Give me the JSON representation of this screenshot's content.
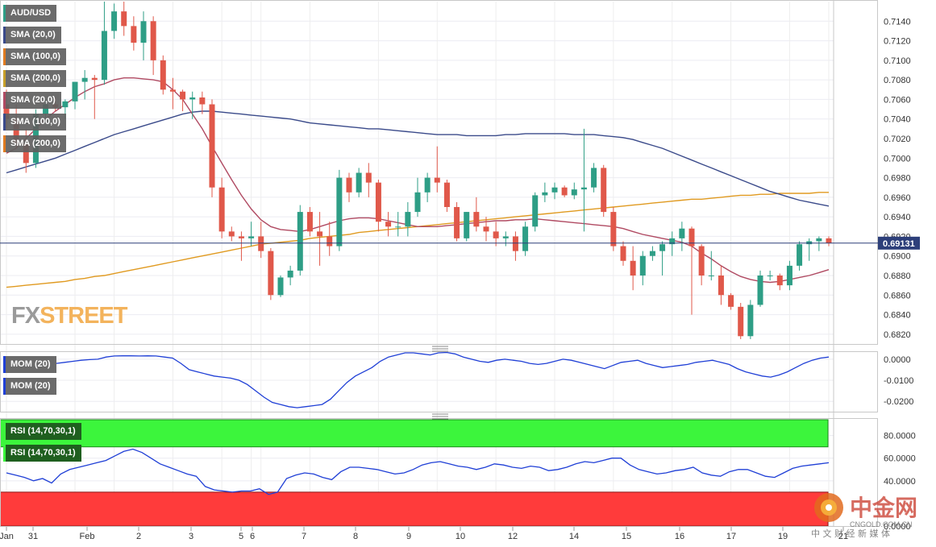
{
  "instrument": "AUD/USD",
  "price_panel": {
    "legend": [
      "SMA (20,0)",
      "SMA (100,0)",
      "SMA (200,0)",
      "SMA (20,0)",
      "SMA (100,0)",
      "SMA (200,0)"
    ],
    "legend_colors": [
      "#3a4a8a",
      "#e07b20",
      "#c7a02a",
      "#b04a62",
      "#3a4a8a",
      "#e07b20"
    ],
    "yticks": [
      "0.7140",
      "0.7120",
      "0.7100",
      "0.7080",
      "0.7060",
      "0.7040",
      "0.7020",
      "0.7000",
      "0.6980",
      "0.6960",
      "0.6940",
      "0.6920",
      "0.6900",
      "0.6880",
      "0.6860",
      "0.6840",
      "0.6820"
    ],
    "current_price": "0.69131",
    "watermark_fx": "FX",
    "watermark_street": "STREET"
  },
  "mom_panel": {
    "legend": [
      "MOM (20)",
      "MOM (20)"
    ],
    "yticks": [
      "0.0000",
      "-0.0100",
      "-0.0200"
    ]
  },
  "rsi_panel": {
    "legend": [
      "RSI (14,70,30,1)",
      "RSI (14,70,30,1)"
    ],
    "yticks": [
      "80.0000",
      "60.0000",
      "40.0000",
      "0.0000"
    ]
  },
  "x_labels": [
    "Jan",
    "31",
    "Feb",
    "2",
    "3",
    "5",
    "6",
    "7",
    "8",
    "9",
    "10",
    "12",
    "14",
    "15",
    "16",
    "17",
    "19",
    "21"
  ],
  "logo": {
    "cn_title": "中金网",
    "domain": "CNGOLD.COM.CN",
    "cn_sub": "中 文 财 经 新 媒 体"
  },
  "colors": {
    "up": "#2e9e86",
    "down": "#e0584a",
    "sma20": "#b04a62",
    "sma100": "#3a4a8a",
    "sma200": "#e09a20",
    "mom": "#1f3fd6",
    "rsi": "#1f3fd6",
    "overbought": "#3cf53c",
    "oversold": "#ff3b3b",
    "price_line": "#2d3f7a"
  },
  "chart_data": {
    "type": "candlestick",
    "title": "AUD/USD",
    "timeframe_labels": [
      "Jan",
      "31",
      "Feb",
      "2",
      "3",
      "5",
      "6",
      "7",
      "8",
      "9",
      "10",
      "12",
      "14",
      "15",
      "16",
      "17",
      "19",
      "21"
    ],
    "ylim": [
      0.681,
      0.716
    ],
    "candles": [
      [
        0.7055,
        0.707,
        0.703,
        0.704
      ],
      [
        0.704,
        0.7055,
        0.701,
        0.7015
      ],
      [
        0.7015,
        0.703,
        0.6985,
        0.6995
      ],
      [
        0.6995,
        0.705,
        0.699,
        0.7045
      ],
      [
        0.7045,
        0.706,
        0.704,
        0.7055
      ],
      [
        0.7055,
        0.7062,
        0.7048,
        0.7052
      ],
      [
        0.7052,
        0.706,
        0.704,
        0.7058
      ],
      [
        0.7058,
        0.7075,
        0.705,
        0.7078
      ],
      [
        0.7078,
        0.709,
        0.706,
        0.7082
      ],
      [
        0.7082,
        0.7085,
        0.704,
        0.708
      ],
      [
        0.708,
        0.716,
        0.7075,
        0.713
      ],
      [
        0.713,
        0.7158,
        0.7122,
        0.715
      ],
      [
        0.715,
        0.716,
        0.7125,
        0.7135
      ],
      [
        0.7135,
        0.7145,
        0.711,
        0.7118
      ],
      [
        0.7118,
        0.715,
        0.71,
        0.714
      ],
      [
        0.714,
        0.7145,
        0.7085,
        0.71
      ],
      [
        0.71,
        0.7105,
        0.7065,
        0.707
      ],
      [
        0.707,
        0.7082,
        0.705,
        0.7068
      ],
      [
        0.7068,
        0.707,
        0.7048,
        0.706
      ],
      [
        0.706,
        0.7068,
        0.704,
        0.7062
      ],
      [
        0.7062,
        0.7068,
        0.7045,
        0.7055
      ],
      [
        0.7055,
        0.706,
        0.696,
        0.697
      ],
      [
        0.697,
        0.698,
        0.6918,
        0.6925
      ],
      [
        0.6925,
        0.693,
        0.6915,
        0.692
      ],
      [
        0.692,
        0.6925,
        0.6895,
        0.6918
      ],
      [
        0.6918,
        0.6935,
        0.691,
        0.692
      ],
      [
        0.692,
        0.6935,
        0.6898,
        0.6905
      ],
      [
        0.6905,
        0.6908,
        0.6855,
        0.686
      ],
      [
        0.686,
        0.688,
        0.6858,
        0.6878
      ],
      [
        0.6878,
        0.689,
        0.687,
        0.6885
      ],
      [
        0.6885,
        0.6952,
        0.688,
        0.6945
      ],
      [
        0.6945,
        0.695,
        0.692,
        0.6925
      ],
      [
        0.6925,
        0.6945,
        0.689,
        0.692
      ],
      [
        0.692,
        0.6935,
        0.69,
        0.691
      ],
      [
        0.691,
        0.6988,
        0.6905,
        0.698
      ],
      [
        0.698,
        0.6985,
        0.6955,
        0.6965
      ],
      [
        0.6965,
        0.699,
        0.696,
        0.6985
      ],
      [
        0.6985,
        0.6995,
        0.696,
        0.6975
      ],
      [
        0.6975,
        0.6978,
        0.6925,
        0.6935
      ],
      [
        0.6935,
        0.6945,
        0.692,
        0.693
      ],
      [
        0.693,
        0.6945,
        0.692,
        0.693
      ],
      [
        0.693,
        0.6955,
        0.692,
        0.6945
      ],
      [
        0.6945,
        0.698,
        0.694,
        0.6965
      ],
      [
        0.6965,
        0.6985,
        0.6955,
        0.698
      ],
      [
        0.698,
        0.7012,
        0.6965,
        0.6975
      ],
      [
        0.6975,
        0.6978,
        0.6945,
        0.695
      ],
      [
        0.695,
        0.6955,
        0.6915,
        0.6918
      ],
      [
        0.6918,
        0.6945,
        0.6915,
        0.6945
      ],
      [
        0.6945,
        0.696,
        0.6925,
        0.693
      ],
      [
        0.693,
        0.694,
        0.6915,
        0.6925
      ],
      [
        0.6925,
        0.6935,
        0.691,
        0.6918
      ],
      [
        0.6918,
        0.6925,
        0.691,
        0.692
      ],
      [
        0.692,
        0.6925,
        0.6895,
        0.6905
      ],
      [
        0.6905,
        0.6935,
        0.69,
        0.693
      ],
      [
        0.693,
        0.6965,
        0.6925,
        0.6962
      ],
      [
        0.6962,
        0.6975,
        0.6955,
        0.6965
      ],
      [
        0.6965,
        0.6975,
        0.6958,
        0.697
      ],
      [
        0.697,
        0.6972,
        0.696,
        0.6962
      ],
      [
        0.6962,
        0.6975,
        0.6958,
        0.6968
      ],
      [
        0.6968,
        0.703,
        0.6925,
        0.697
      ],
      [
        0.697,
        0.6995,
        0.6965,
        0.699
      ],
      [
        0.699,
        0.6993,
        0.694,
        0.6945
      ],
      [
        0.6945,
        0.695,
        0.6905,
        0.691
      ],
      [
        0.691,
        0.6915,
        0.689,
        0.6895
      ],
      [
        0.6895,
        0.691,
        0.6865,
        0.688
      ],
      [
        0.688,
        0.6905,
        0.687,
        0.69
      ],
      [
        0.69,
        0.691,
        0.6895,
        0.6905
      ],
      [
        0.6905,
        0.6915,
        0.688,
        0.6912
      ],
      [
        0.6912,
        0.6925,
        0.69,
        0.6918
      ],
      [
        0.6918,
        0.6935,
        0.6905,
        0.6928
      ],
      [
        0.6928,
        0.693,
        0.684,
        0.691
      ],
      [
        0.691,
        0.6912,
        0.687,
        0.688
      ],
      [
        0.688,
        0.6905,
        0.6875,
        0.688
      ],
      [
        0.688,
        0.689,
        0.685,
        0.686
      ],
      [
        0.686,
        0.6862,
        0.6845,
        0.6848
      ],
      [
        0.6848,
        0.6852,
        0.6815,
        0.6818
      ],
      [
        0.6818,
        0.6855,
        0.6815,
        0.685
      ],
      [
        0.685,
        0.6885,
        0.6848,
        0.688
      ],
      [
        0.688,
        0.6885,
        0.6875,
        0.688
      ],
      [
        0.688,
        0.6882,
        0.6865,
        0.687
      ],
      [
        0.687,
        0.6895,
        0.6865,
        0.689
      ],
      [
        0.689,
        0.6915,
        0.6885,
        0.6912
      ],
      [
        0.6912,
        0.6918,
        0.6895,
        0.6915
      ],
      [
        0.6915,
        0.692,
        0.6905,
        0.6918
      ],
      [
        0.6918,
        0.692,
        0.691,
        0.6913
      ]
    ],
    "sma20": [
      0.7005,
      0.701,
      0.702,
      0.703,
      0.704,
      0.7048,
      0.7055,
      0.7062,
      0.7068,
      0.7073,
      0.7076,
      0.708,
      0.7082,
      0.7082,
      0.7081,
      0.708,
      0.7078,
      0.707,
      0.706,
      0.7045,
      0.703,
      0.7012,
      0.6995,
      0.6978,
      0.6962,
      0.6948,
      0.6937,
      0.693,
      0.6927,
      0.6926,
      0.6925,
      0.6927,
      0.693,
      0.6933,
      0.6936,
      0.6938,
      0.6939,
      0.6939,
      0.6938,
      0.6936,
      0.6934,
      0.6932,
      0.693,
      0.693,
      0.693,
      0.6931,
      0.6932,
      0.6933,
      0.6934,
      0.6935,
      0.6936,
      0.6936,
      0.6937,
      0.6937,
      0.6938,
      0.6937,
      0.6936,
      0.6935,
      0.6934,
      0.6933,
      0.6932,
      0.6931,
      0.693,
      0.6928,
      0.6925,
      0.6922,
      0.692,
      0.6918,
      0.6916,
      0.6914,
      0.691,
      0.6903,
      0.6897,
      0.689,
      0.6884,
      0.6879,
      0.6876,
      0.6874,
      0.6873,
      0.6874,
      0.6876,
      0.6878,
      0.688,
      0.6883,
      0.6886
    ],
    "sma100": [
      0.6985,
      0.6988,
      0.6991,
      0.6994,
      0.6997,
      0.7,
      0.7004,
      0.7008,
      0.7012,
      0.7016,
      0.702,
      0.7024,
      0.7027,
      0.703,
      0.7033,
      0.7036,
      0.7039,
      0.7042,
      0.7045,
      0.7047,
      0.7048,
      0.7048,
      0.7047,
      0.7046,
      0.7045,
      0.7044,
      0.7043,
      0.7042,
      0.7041,
      0.704,
      0.7038,
      0.7036,
      0.7035,
      0.7034,
      0.7033,
      0.7032,
      0.7031,
      0.703,
      0.703,
      0.7029,
      0.7028,
      0.7027,
      0.7026,
      0.7025,
      0.7024,
      0.7024,
      0.7024,
      0.7023,
      0.7023,
      0.7023,
      0.7023,
      0.7024,
      0.7024,
      0.7025,
      0.7025,
      0.7025,
      0.7025,
      0.7025,
      0.7024,
      0.7024,
      0.7024,
      0.7023,
      0.7022,
      0.7021,
      0.7019,
      0.7016,
      0.7013,
      0.701,
      0.7006,
      0.7002,
      0.6998,
      0.6994,
      0.699,
      0.6986,
      0.6982,
      0.6978,
      0.6974,
      0.697,
      0.6966,
      0.6963,
      0.696,
      0.6957,
      0.6955,
      0.6953,
      0.6951
    ],
    "sma200": [
      0.6868,
      0.6869,
      0.687,
      0.6871,
      0.6872,
      0.6873,
      0.6874,
      0.6876,
      0.6877,
      0.6879,
      0.688,
      0.6882,
      0.6884,
      0.6886,
      0.6888,
      0.689,
      0.6892,
      0.6894,
      0.6896,
      0.6898,
      0.69,
      0.6902,
      0.6904,
      0.6906,
      0.6908,
      0.691,
      0.6912,
      0.6913,
      0.6914,
      0.6915,
      0.6916,
      0.6918,
      0.6919,
      0.692,
      0.6921,
      0.6922,
      0.6924,
      0.6925,
      0.6926,
      0.6927,
      0.6928,
      0.6929,
      0.693,
      0.6931,
      0.6932,
      0.6933,
      0.6934,
      0.6935,
      0.6936,
      0.6937,
      0.6938,
      0.6939,
      0.694,
      0.6941,
      0.6942,
      0.6943,
      0.6944,
      0.6945,
      0.6946,
      0.6947,
      0.6948,
      0.6949,
      0.695,
      0.6951,
      0.6952,
      0.6953,
      0.6954,
      0.6955,
      0.6956,
      0.6957,
      0.6958,
      0.6958,
      0.6959,
      0.696,
      0.6961,
      0.6962,
      0.6962,
      0.6963,
      0.6963,
      0.6964,
      0.6964,
      0.6964,
      0.6964,
      0.6965,
      0.6965
    ],
    "mom": [
      -0.001,
      -0.002,
      -0.003,
      -0.0035,
      -0.003,
      -0.0025,
      -0.002,
      -0.0015,
      -0.001,
      -0.0005,
      -0.0002,
      0.0,
      0.001,
      0.0015,
      0.0016,
      0.0016,
      0.0015,
      0.0016,
      0.0015,
      0.001,
      0.0005,
      -0.002,
      -0.005,
      -0.006,
      -0.007,
      -0.008,
      -0.0085,
      -0.009,
      -0.01,
      -0.012,
      -0.015,
      -0.018,
      -0.0205,
      -0.0215,
      -0.0225,
      -0.023,
      -0.0225,
      -0.022,
      -0.0215,
      -0.019,
      -0.015,
      -0.011,
      -0.008,
      -0.006,
      -0.004,
      -0.001,
      0.001,
      0.002,
      0.003,
      0.003,
      0.0025,
      0.002,
      0.003,
      0.0032,
      0.0025,
      0.001,
      0.0,
      -0.001,
      -0.0015,
      -0.0005,
      0.0,
      -0.0005,
      -0.001,
      -0.002,
      -0.0025,
      -0.002,
      -0.001,
      0.0,
      -0.0005,
      -0.0015,
      -0.0025,
      -0.0035,
      -0.0045,
      -0.003,
      -0.0015,
      -0.001,
      -0.0005,
      -0.002,
      -0.003,
      -0.004,
      -0.0035,
      -0.003,
      -0.0025,
      -0.0015,
      -0.001,
      -0.0005,
      -0.0015,
      -0.0025,
      -0.0045,
      -0.006,
      -0.007,
      -0.008,
      -0.0085,
      -0.0075,
      -0.006,
      -0.004,
      -0.002,
      -0.0005,
      0.0005,
      0.001
    ],
    "rsi": [
      47,
      45,
      43,
      40,
      42,
      38,
      46,
      50,
      52,
      54,
      56,
      58,
      62,
      66,
      68,
      65,
      60,
      55,
      52,
      49,
      46,
      44,
      35,
      32,
      31,
      30,
      31,
      31,
      33,
      28,
      30,
      42,
      45,
      47,
      46,
      43,
      41,
      48,
      52,
      52,
      51,
      50,
      48,
      46,
      47,
      50,
      54,
      56,
      57,
      55,
      53,
      52,
      50,
      52,
      55,
      54,
      52,
      51,
      53,
      52,
      49,
      50,
      52,
      55,
      57,
      56,
      58,
      60,
      60,
      54,
      50,
      48,
      46,
      47,
      49,
      50,
      52,
      47,
      45,
      44,
      48,
      50,
      50,
      47,
      44,
      43,
      47,
      51,
      53,
      54,
      55,
      56
    ],
    "rsi_bands": {
      "overbought": 70,
      "oversold": 30
    }
  }
}
